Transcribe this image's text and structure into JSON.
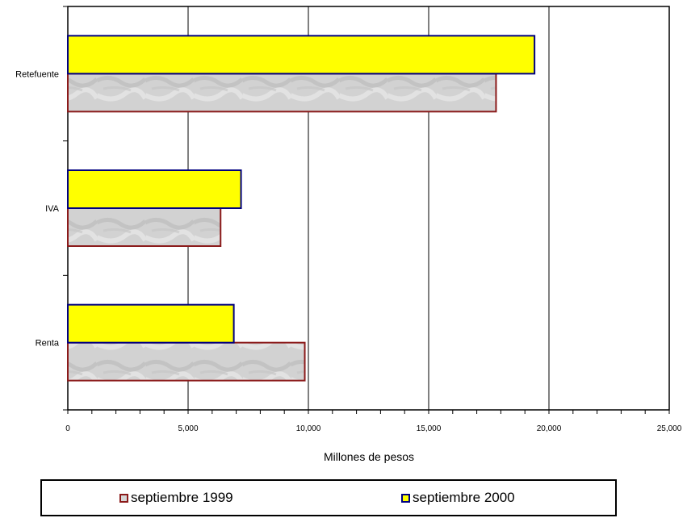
{
  "chart_data": {
    "type": "bar",
    "orientation": "horizontal",
    "categories": [
      "Retefuente",
      "IVA",
      "Renta"
    ],
    "series": [
      {
        "name": "septiembre 1999",
        "values": [
          17800,
          6350,
          9850
        ],
        "fill": "#d6d6d6",
        "border": "#8b1a1a"
      },
      {
        "name": "septiembre 2000",
        "values": [
          19400,
          7200,
          6900
        ],
        "fill": "#ffff00",
        "border": "#000080"
      }
    ],
    "x_ticks": [
      "0",
      "5,000",
      "10,000",
      "15,000",
      "20,000",
      "25,000"
    ],
    "xlim": [
      0,
      25000
    ],
    "xlabel": "Millones de pesos",
    "grid": "vertical",
    "legend_position": "bottom"
  },
  "legend": {
    "item1": "septiembre 1999",
    "item2": "septiembre 2000"
  }
}
